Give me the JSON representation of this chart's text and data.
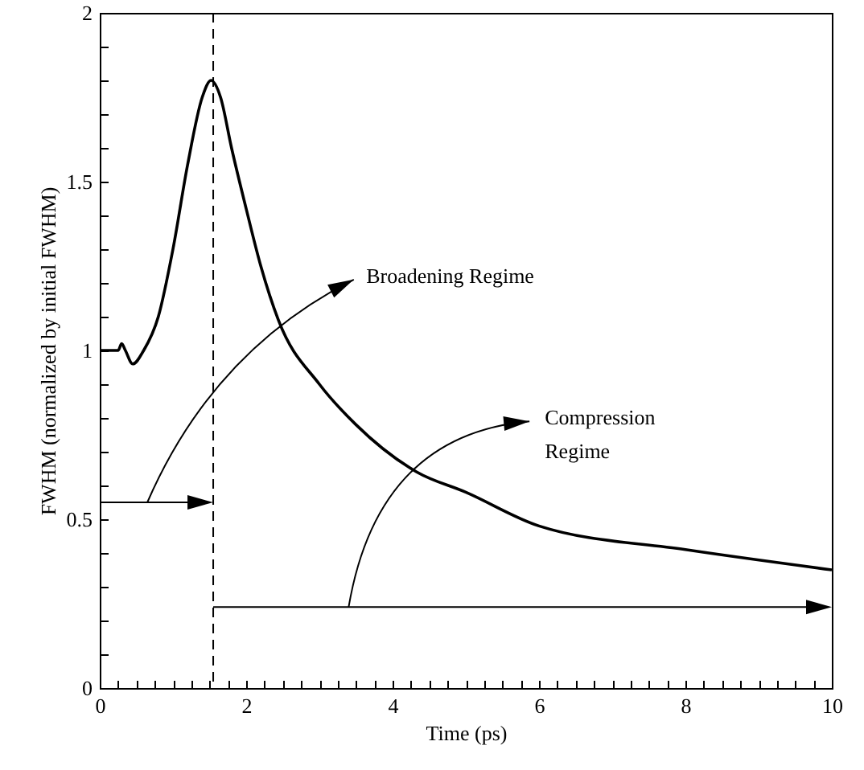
{
  "chart_data": {
    "type": "line",
    "xlabel": "Time (ps)",
    "ylabel": "FWHM (normalized by initial FWHM)",
    "x": [
      0,
      0.25,
      0.3,
      0.35,
      0.45,
      0.6,
      0.8,
      1.0,
      1.2,
      1.4,
      1.52,
      1.65,
      1.8,
      2.0,
      2.2,
      2.44,
      3.0,
      3.5,
      4.33,
      5.0,
      6.0,
      8.0,
      10.0
    ],
    "series": [
      {
        "color": "#000000",
        "values": [
          1.0,
          1.0,
          1.02,
          1.0,
          0.96,
          1.0,
          1.1,
          1.3,
          1.55,
          1.75,
          1.8,
          1.75,
          1.6,
          1.42,
          1.25,
          1.09,
          0.9,
          0.78,
          0.64,
          0.58,
          0.48,
          0.41,
          0.35
        ]
      }
    ],
    "xlim": [
      0,
      10
    ],
    "ylim": [
      0,
      2
    ],
    "xticks": [
      0,
      {
        "value": 0.25,
        "label": null
      },
      {
        "value": 0.5,
        "label": null
      },
      {
        "value": 0.75,
        "label": null
      },
      {
        "value": 1,
        "label": null
      },
      {
        "value": 1.25,
        "label": null
      },
      {
        "value": 1.5,
        "label": null
      },
      {
        "value": 1.75,
        "label": null
      },
      2,
      {
        "value": 2.25,
        "label": null
      },
      {
        "value": 2.5,
        "label": null
      },
      {
        "value": 2.75,
        "label": null
      },
      {
        "value": 3,
        "label": null
      },
      {
        "value": 3.25,
        "label": null
      },
      {
        "value": 3.5,
        "label": null
      },
      {
        "value": 3.75,
        "label": null
      },
      4,
      {
        "value": 4.25,
        "label": null
      },
      {
        "value": 4.5,
        "label": null
      },
      {
        "value": 4.75,
        "label": null
      },
      {
        "value": 5,
        "label": null
      },
      {
        "value": 5.25,
        "label": null
      },
      {
        "value": 5.5,
        "label": null
      },
      {
        "value": 5.75,
        "label": null
      },
      6,
      {
        "value": 6.25,
        "label": null
      },
      {
        "value": 6.5,
        "label": null
      },
      {
        "value": 6.75,
        "label": null
      },
      {
        "value": 7,
        "label": null
      },
      {
        "value": 7.25,
        "label": null
      },
      {
        "value": 7.5,
        "label": null
      },
      {
        "value": 7.75,
        "label": null
      },
      8,
      {
        "value": 8.25,
        "label": null
      },
      {
        "value": 8.5,
        "label": null
      },
      {
        "value": 8.75,
        "label": null
      },
      {
        "value": 9,
        "label": null
      },
      {
        "value": 9.25,
        "label": null
      },
      {
        "value": 9.5,
        "label": null
      },
      {
        "value": 9.75,
        "label": null
      },
      10
    ],
    "yticks": [
      0,
      {
        "value": 0.1,
        "label": null
      },
      {
        "value": 0.2,
        "label": null
      },
      {
        "value": 0.3,
        "label": null
      },
      {
        "value": 0.4,
        "label": null
      },
      0.5,
      {
        "value": 0.6,
        "label": null
      },
      {
        "value": 0.7,
        "label": null
      },
      {
        "value": 0.8,
        "label": null
      },
      {
        "value": 0.9,
        "label": null
      },
      1,
      {
        "value": 1.1,
        "label": null
      },
      {
        "value": 1.2,
        "label": null
      },
      {
        "value": 1.3,
        "label": null
      },
      {
        "value": 1.4,
        "label": null
      },
      1.5,
      {
        "value": 1.6,
        "label": null
      },
      {
        "value": 1.7,
        "label": null
      },
      {
        "value": 1.8,
        "label": null
      },
      {
        "value": 1.9,
        "label": null
      },
      2
    ],
    "ref_lines": [
      {
        "axis": "x",
        "value": 1.55,
        "line_style": "dashed",
        "color": "#000000"
      }
    ],
    "annotations": [
      "Broadening Regime",
      "Compression\nRegime"
    ],
    "grid": false,
    "marker": "none",
    "line_style": "solid"
  }
}
